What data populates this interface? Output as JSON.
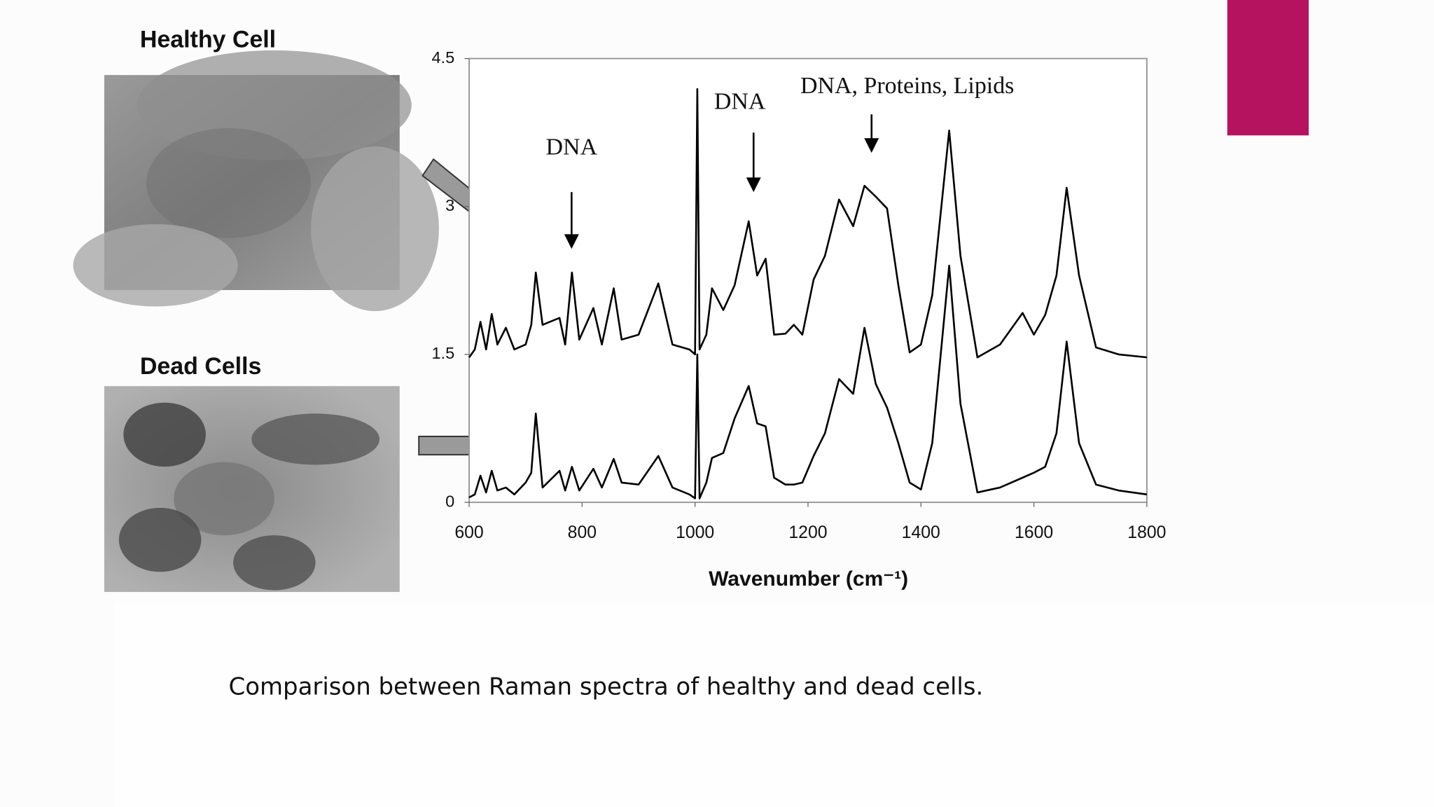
{
  "chart_data": {
    "type": "line",
    "panel_labels": [
      "Healthy Cell",
      "Dead Cells"
    ],
    "annotations": [
      "DNA",
      "DNA",
      "DNA, Proteins, Lipids"
    ],
    "xlabel": "Wavenumber (cm⁻¹)",
    "caption": "Comparison between Raman spectra of healthy and dead cells.",
    "xlim": [
      600,
      1800
    ],
    "xticks": [
      600,
      800,
      1000,
      1200,
      1400,
      1600,
      1800
    ],
    "ylim": [
      0,
      4.5
    ],
    "yticks": [
      0,
      1.5,
      3,
      4.5
    ],
    "x": [
      600,
      610,
      620,
      630,
      640,
      650,
      665,
      680,
      700,
      710,
      718,
      730,
      760,
      770,
      782,
      795,
      820,
      835,
      856,
      870,
      900,
      935,
      960,
      990,
      1000,
      1004,
      1008,
      1020,
      1030,
      1050,
      1070,
      1095,
      1110,
      1125,
      1140,
      1160,
      1175,
      1190,
      1210,
      1230,
      1255,
      1280,
      1300,
      1320,
      1340,
      1360,
      1380,
      1400,
      1420,
      1450,
      1470,
      1500,
      1540,
      1580,
      1600,
      1620,
      1640,
      1658,
      1680,
      1710,
      1750,
      1800
    ],
    "series": [
      {
        "color": "#000000",
        "values": [
          1.47,
          1.55,
          1.83,
          1.55,
          1.91,
          1.6,
          1.77,
          1.55,
          1.6,
          1.8,
          2.33,
          1.8,
          1.87,
          1.6,
          2.33,
          1.65,
          1.97,
          1.6,
          2.17,
          1.65,
          1.7,
          2.22,
          1.6,
          1.55,
          1.5,
          4.19,
          1.55,
          1.7,
          2.17,
          1.95,
          2.2,
          2.85,
          2.3,
          2.47,
          1.7,
          1.71,
          1.8,
          1.7,
          2.26,
          2.5,
          3.07,
          2.8,
          3.21,
          3.1,
          2.98,
          2.2,
          1.52,
          1.6,
          2.1,
          3.77,
          2.5,
          1.47,
          1.6,
          1.92,
          1.7,
          1.9,
          2.3,
          3.19,
          2.3,
          1.57,
          1.5,
          1.47
        ]
      },
      {
        "color": "#000000",
        "values": [
          0.05,
          0.08,
          0.27,
          0.1,
          0.32,
          0.12,
          0.15,
          0.08,
          0.2,
          0.3,
          0.9,
          0.15,
          0.32,
          0.12,
          0.36,
          0.12,
          0.34,
          0.15,
          0.44,
          0.2,
          0.18,
          0.47,
          0.15,
          0.08,
          0.04,
          1.5,
          0.04,
          0.2,
          0.45,
          0.5,
          0.85,
          1.18,
          0.8,
          0.77,
          0.25,
          0.18,
          0.18,
          0.2,
          0.47,
          0.7,
          1.25,
          1.1,
          1.77,
          1.2,
          0.96,
          0.6,
          0.2,
          0.13,
          0.6,
          2.4,
          1.0,
          0.1,
          0.15,
          0.25,
          0.3,
          0.36,
          0.7,
          1.63,
          0.6,
          0.18,
          0.12,
          0.08
        ]
      }
    ]
  }
}
